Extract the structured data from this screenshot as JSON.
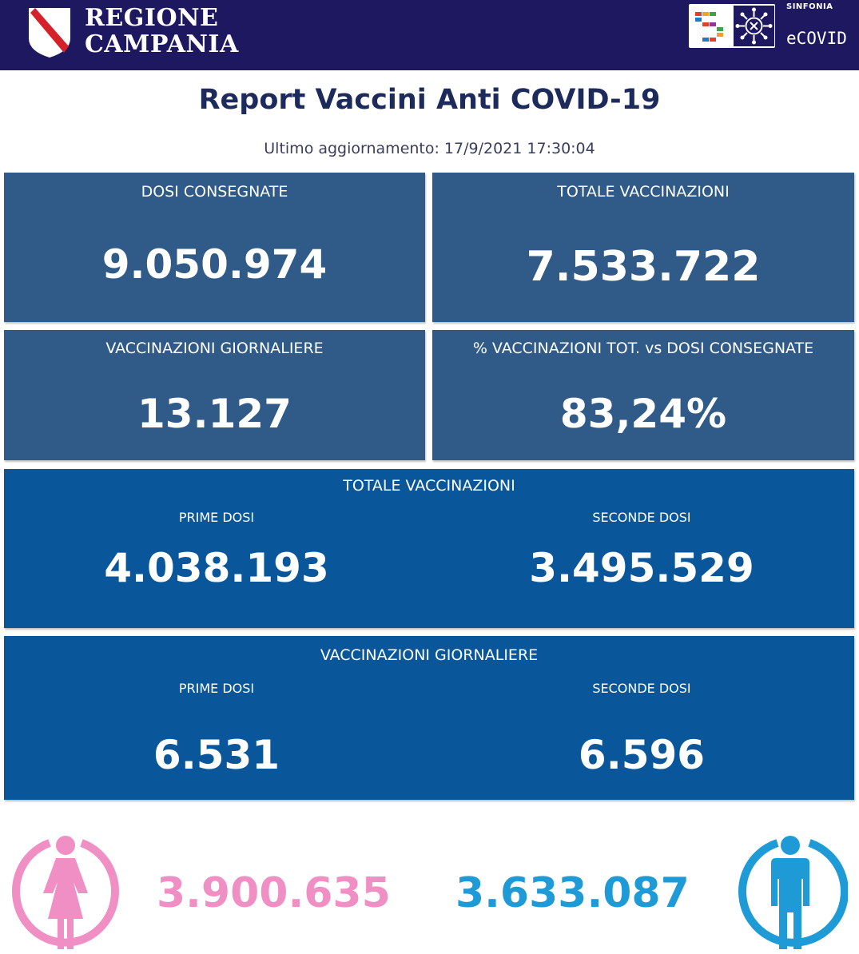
{
  "header": {
    "region_line1": "REGIONE",
    "region_line2": "CAMPANIA",
    "partner_small": "SINFONIA",
    "partner_name": "eCOVID",
    "icons": [
      "campania-shield-icon",
      "sinfonia-logo-icon",
      "virus-cross-icon"
    ]
  },
  "report": {
    "title": "Report Vaccini Anti COVID-19",
    "updated": "Ultimo aggiornamento: 17/9/2021  17:30:04"
  },
  "tiles": {
    "dosi_consegnate": {
      "label": "DOSI  CONSEGNATE",
      "value": "9.050.974"
    },
    "totale_vaccinazioni": {
      "label": "TOTALE VACCINAZIONI",
      "value": "7.533.722"
    },
    "vaccinazioni_giornaliere": {
      "label": "VACCINAZIONI GIORNALIERE",
      "value": "13.127"
    },
    "percentuale": {
      "label": "% VACCINAZIONI TOT. vs DOSI CONSEGNATE",
      "value": "83,24%"
    }
  },
  "totale_panel": {
    "title": "TOTALE VACCINAZIONI",
    "prime_label": "PRIME DOSI",
    "prime_value": "4.038.193",
    "seconde_label": "SECONDE DOSI",
    "seconde_value": "3.495.529"
  },
  "giornaliere_panel": {
    "title": "VACCINAZIONI GIORNALIERE",
    "prime_label": "PRIME DOSI",
    "prime_value": "6.531",
    "seconde_label": "SECONDE DOSI",
    "seconde_value": "6.596"
  },
  "gender": {
    "female_value": "3.900.635",
    "male_value": "3.633.087",
    "female_color": "#f08fc4",
    "male_color": "#1e9bd7"
  },
  "colors": {
    "header_bg": "#1d1860",
    "tile_bg": "#305b88",
    "panel_bg": "#09579a",
    "title_color": "#1d2b5c"
  }
}
